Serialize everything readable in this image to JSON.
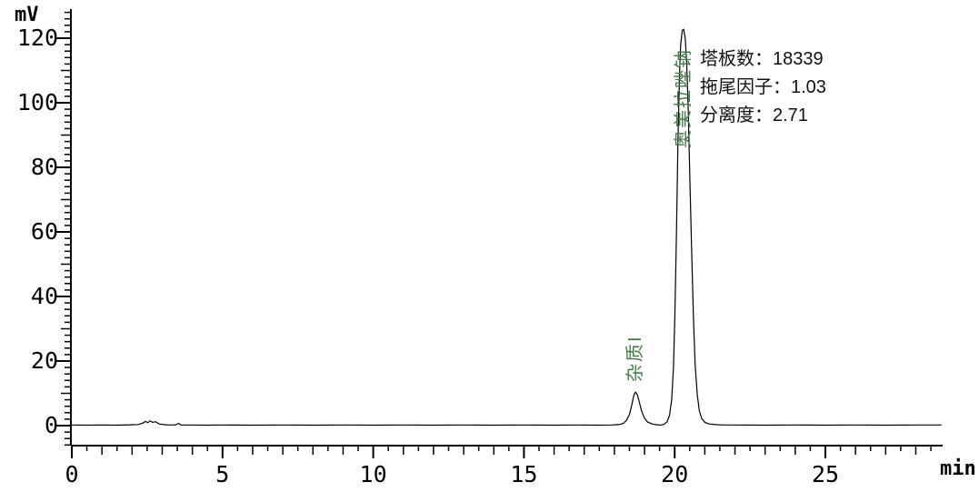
{
  "axis_labels": {
    "y_unit": "mV",
    "x_unit": "min"
  },
  "peak_stats": {
    "plates": "塔板数：18339",
    "tailing_factor": "拖尾因子：1.03",
    "resolution": "分离度：2.71"
  },
  "peak_labels": {
    "impurity": "杂质I",
    "main": "奥美拉唑钠"
  },
  "colors": {
    "trace": "#000000",
    "axis": "#000000",
    "peak_label_green": "#457a48"
  },
  "chart_data": {
    "type": "line",
    "title": "",
    "xlabel": "min",
    "ylabel": "mV",
    "xlim": [
      0,
      28.9
    ],
    "ylim": [
      -6,
      128
    ],
    "grid": false,
    "legend": false,
    "x_major_ticks": [
      0,
      5,
      10,
      15,
      20,
      25
    ],
    "x_integer_tick_step": 1,
    "x_minor_tick_step": 0.5,
    "y_major_ticks": [
      0,
      20,
      40,
      60,
      80,
      100,
      120
    ],
    "y_medium_tick_step": 10,
    "y_minor_tick_step": 2,
    "peaks": [
      {
        "name": "杂质I",
        "retention_min": 18.7,
        "height_mv": 10.4
      },
      {
        "name": "奥美拉唑钠",
        "retention_min": 20.3,
        "height_mv": 122.8,
        "plates": 18339,
        "tailing_factor": 1.03,
        "resolution": 2.71
      }
    ],
    "baseline_noise": {
      "bump_at_min": 2.6,
      "bump_mv": 1.5,
      "blip_at_min": 3.55,
      "blip_mv": 0.7
    },
    "trace": [
      [
        0,
        0.2
      ],
      [
        0.5,
        0.15
      ],
      [
        1,
        0.2
      ],
      [
        1.5,
        0.15
      ],
      [
        2,
        0.25
      ],
      [
        2.2,
        0.35
      ],
      [
        2.35,
        0.75
      ],
      [
        2.45,
        1.3
      ],
      [
        2.52,
        0.9
      ],
      [
        2.6,
        1.5
      ],
      [
        2.68,
        1.0
      ],
      [
        2.78,
        1.2
      ],
      [
        2.9,
        0.5
      ],
      [
        3.05,
        0.3
      ],
      [
        3.2,
        0.2
      ],
      [
        3.45,
        0.25
      ],
      [
        3.55,
        0.7
      ],
      [
        3.62,
        0.2
      ],
      [
        3.8,
        0.2
      ],
      [
        4.5,
        0.15
      ],
      [
        5,
        0.2
      ],
      [
        6,
        0.15
      ],
      [
        7,
        0.2
      ],
      [
        8,
        0.15
      ],
      [
        9,
        0.2
      ],
      [
        10,
        0.15
      ],
      [
        11,
        0.2
      ],
      [
        12,
        0.15
      ],
      [
        13,
        0.2
      ],
      [
        14,
        0.15
      ],
      [
        15,
        0.2
      ],
      [
        16,
        0.15
      ],
      [
        16.8,
        0.2
      ],
      [
        17.4,
        0.15
      ],
      [
        17.9,
        0.2
      ],
      [
        18.15,
        0.3
      ],
      [
        18.3,
        0.7
      ],
      [
        18.4,
        1.6
      ],
      [
        18.5,
        3.5
      ],
      [
        18.58,
        6.5
      ],
      [
        18.65,
        9.5
      ],
      [
        18.7,
        10.4
      ],
      [
        18.76,
        9.6
      ],
      [
        18.83,
        7.2
      ],
      [
        18.9,
        4.6
      ],
      [
        19.0,
        2.3
      ],
      [
        19.1,
        1.1
      ],
      [
        19.25,
        0.5
      ],
      [
        19.4,
        0.25
      ],
      [
        19.55,
        0.2
      ],
      [
        19.65,
        0.4
      ],
      [
        19.75,
        1.2
      ],
      [
        19.83,
        3.2
      ],
      [
        19.9,
        8
      ],
      [
        19.96,
        18
      ],
      [
        20.01,
        35
      ],
      [
        20.06,
        60
      ],
      [
        20.11,
        88
      ],
      [
        20.16,
        108
      ],
      [
        20.2,
        118
      ],
      [
        20.25,
        122.3
      ],
      [
        20.3,
        122.8
      ],
      [
        20.35,
        120
      ],
      [
        20.4,
        112
      ],
      [
        20.45,
        98
      ],
      [
        20.5,
        78
      ],
      [
        20.56,
        55
      ],
      [
        20.62,
        34
      ],
      [
        20.68,
        19
      ],
      [
        20.75,
        9.5
      ],
      [
        20.82,
        4.5
      ],
      [
        20.9,
        2.2
      ],
      [
        21.0,
        1.0
      ],
      [
        21.15,
        0.5
      ],
      [
        21.35,
        0.3
      ],
      [
        21.6,
        0.2
      ],
      [
        22,
        0.2
      ],
      [
        23,
        0.15
      ],
      [
        24,
        0.2
      ],
      [
        25,
        0.15
      ],
      [
        26,
        0.2
      ],
      [
        27,
        0.15
      ],
      [
        28,
        0.2
      ],
      [
        28.85,
        0.2
      ]
    ]
  }
}
